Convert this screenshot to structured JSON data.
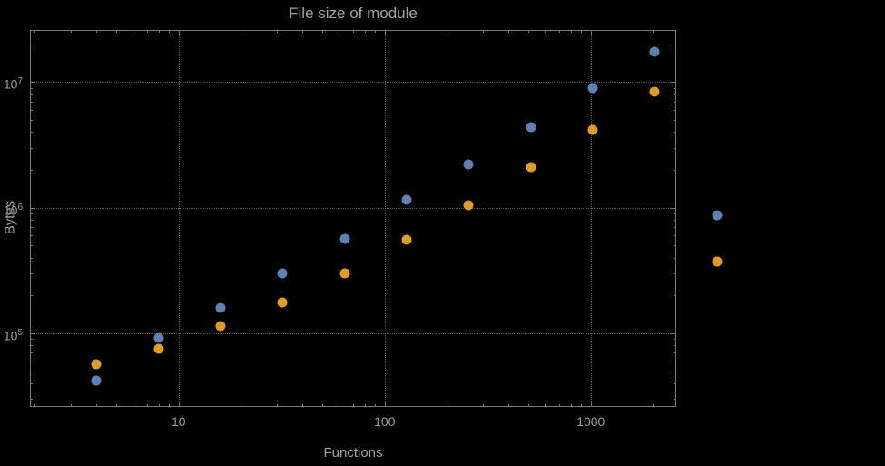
{
  "chart_data": {
    "type": "scatter",
    "title": "File size of module",
    "xlabel": "Functions",
    "ylabel": "Bytes",
    "x_scale": "log",
    "y_scale": "log",
    "xlim": [
      1.9,
      2600
    ],
    "ylim": [
      26000,
      26000000
    ],
    "x_ticks": [
      10,
      100,
      1000
    ],
    "y_ticks": [
      100000,
      1000000,
      10000000
    ],
    "grid": "dotted",
    "legend": "none",
    "x": [
      4,
      8,
      16,
      32,
      64,
      128,
      256,
      512,
      1024,
      2048,
      4096
    ],
    "series": [
      {
        "color": "#5e81b5",
        "values": [
          42000,
          92000,
          160000,
          300000,
          570000,
          1150000,
          2200000,
          4400000,
          8900000,
          17500000,
          870000
        ]
      },
      {
        "color": "#e09c24",
        "values": [
          57000,
          75000,
          115000,
          175000,
          300000,
          560000,
          1050000,
          2100000,
          4200000,
          8400000,
          370000
        ]
      }
    ]
  },
  "style": {
    "background_color": "#000000",
    "text_color": "#a2a2a2",
    "tick_label_color": "#9c9c9c",
    "frame_color": "#787878",
    "grid_color": "#5c5c5c",
    "point_size": 11
  }
}
